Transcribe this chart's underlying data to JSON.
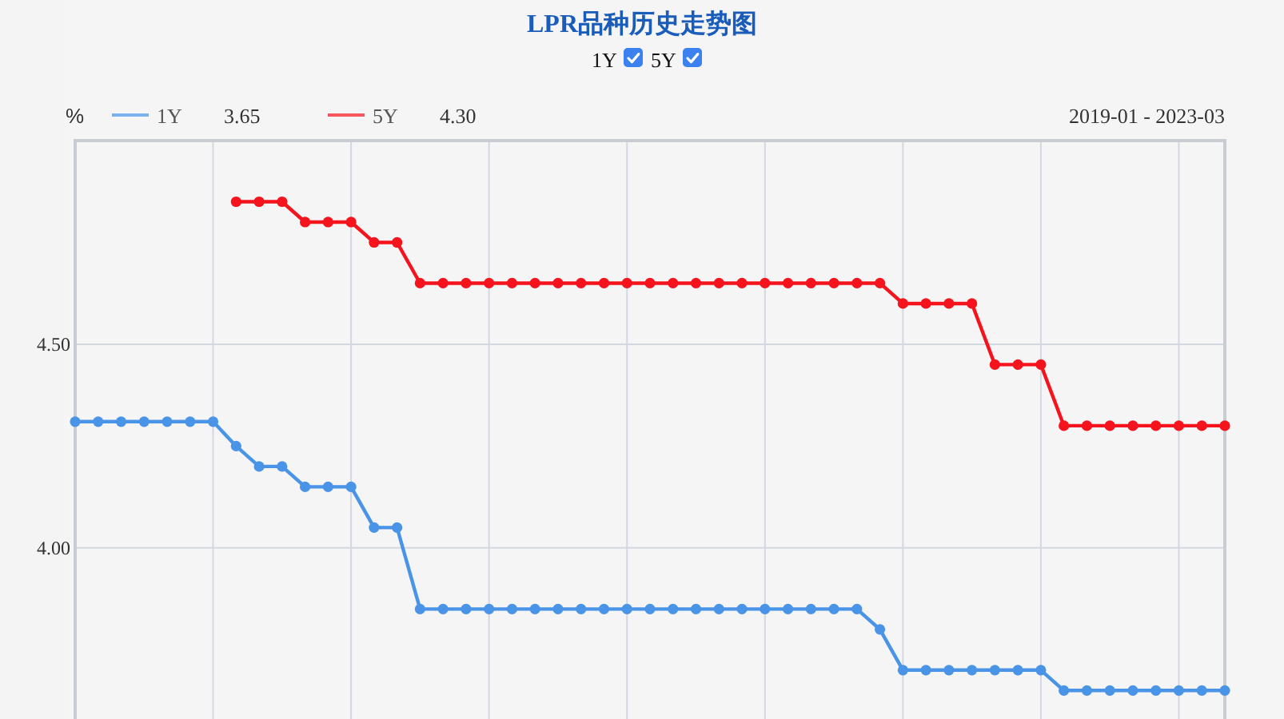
{
  "chart_data": {
    "type": "line",
    "title": "LPR品种历史走势图",
    "ylabel": "%",
    "annotations": [
      "1Y",
      "5Y",
      "3.65",
      "4.30",
      "2019-01 - 2023-03"
    ],
    "categories": [
      null,
      null,
      null,
      null,
      null,
      null,
      null,
      null,
      null,
      null,
      null,
      null,
      null,
      null,
      null,
      null,
      null,
      null,
      null,
      null,
      null,
      null,
      null,
      null,
      null,
      null,
      null,
      null,
      null,
      null,
      null,
      null,
      null,
      null,
      null,
      null,
      null,
      null,
      null,
      null,
      null,
      null,
      null,
      null,
      null,
      null,
      null,
      null,
      null,
      null,
      null
    ],
    "series": [
      {
        "name": "1Y",
        "color": "#4a94e8",
        "values": [
          4.31,
          4.31,
          4.31,
          4.31,
          4.31,
          4.31,
          4.31,
          4.25,
          4.2,
          4.2,
          4.15,
          4.15,
          4.15,
          4.05,
          4.05,
          3.85,
          3.85,
          3.85,
          3.85,
          3.85,
          3.85,
          3.85,
          3.85,
          3.85,
          3.85,
          3.85,
          3.85,
          3.85,
          3.85,
          3.85,
          3.85,
          3.85,
          3.85,
          3.85,
          3.85,
          3.8,
          3.7,
          3.7,
          3.7,
          3.7,
          3.7,
          3.7,
          3.7,
          3.65,
          3.65,
          3.65,
          3.65,
          3.65,
          3.65,
          3.65,
          3.65
        ]
      },
      {
        "name": "5Y",
        "color": "#f5141e",
        "values": [
          null,
          null,
          null,
          null,
          null,
          null,
          null,
          4.85,
          4.85,
          4.85,
          4.8,
          4.8,
          4.8,
          4.75,
          4.75,
          4.65,
          4.65,
          4.65,
          4.65,
          4.65,
          4.65,
          4.65,
          4.65,
          4.65,
          4.65,
          4.65,
          4.65,
          4.65,
          4.65,
          4.65,
          4.65,
          4.65,
          4.65,
          4.65,
          4.65,
          4.65,
          4.6,
          4.6,
          4.6,
          4.6,
          4.45,
          4.45,
          4.45,
          4.3,
          4.3,
          4.3,
          4.3,
          4.3,
          4.3,
          4.3,
          4.3
        ]
      }
    ],
    "ylim": [
      3.58,
      5.0
    ],
    "yticks": [
      {
        "value": 4.0,
        "label": "4.00"
      },
      {
        "value": 4.5,
        "label": "4.50"
      }
    ],
    "grid": true,
    "legend": "top left",
    "marker": "circle",
    "line_style": "solid",
    "tick_labels": "y"
  }
}
